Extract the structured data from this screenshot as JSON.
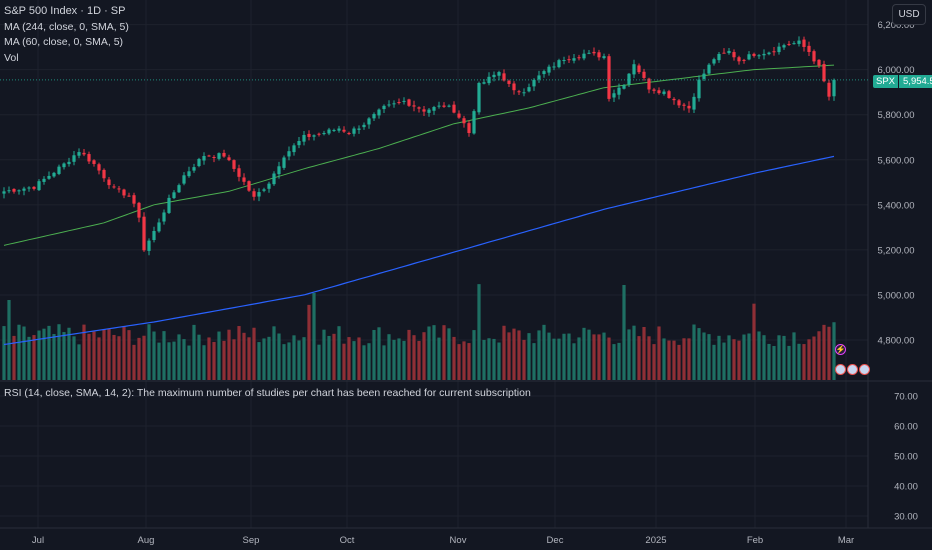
{
  "header": {
    "title": "S&P 500 Index · 1D · SP",
    "indicators": [
      "MA (244, close, 0, SMA, 5)",
      "MA (60, close, 0, SMA, 5)",
      "Vol"
    ],
    "currency_button": "USD"
  },
  "price_tag": {
    "symbol": "SPX",
    "value": "5,954.51"
  },
  "rsi_note": "RSI (14, close, SMA, 14, 2): The maximum number of studies per chart has been reached for current subscription",
  "colors": {
    "background": "#131722",
    "up": "#22ab94",
    "down": "#f23645",
    "ma60": "#4caf50",
    "ma244": "#2962ff",
    "grid": "#1e222d"
  },
  "events": {
    "bolt_icon": "lightning-icon",
    "flag_icons": [
      "us-flag-icon",
      "us-flag-icon",
      "us-flag-icon"
    ]
  },
  "chart_data": {
    "type": "candlestick",
    "title": "S&P 500 Index · 1D · SP",
    "price_axis": {
      "ticks": [
        4800,
        5000,
        5200,
        5400,
        5600,
        5800,
        6000,
        6200
      ],
      "tick_labels": [
        "4,800.00",
        "5,000.00",
        "5,200.00",
        "5,400.00",
        "5,600.00",
        "5,800.00",
        "6,000.00",
        "6,200.00"
      ]
    },
    "rsi_axis": {
      "ticks": [
        30,
        40,
        50,
        60,
        70
      ],
      "tick_labels": [
        "30.00",
        "40.00",
        "50.00",
        "60.00",
        "70.00"
      ]
    },
    "x_labels": [
      "Jul",
      "Aug",
      "Sep",
      "Oct",
      "Nov",
      "Dec",
      "2025",
      "Feb",
      "Mar"
    ],
    "last_close": 5954.51,
    "close_anchors": [
      {
        "i": 0,
        "c": 5460
      },
      {
        "i": 6,
        "c": 5480
      },
      {
        "i": 12,
        "c": 5580
      },
      {
        "i": 15,
        "c": 5640
      },
      {
        "i": 18,
        "c": 5580
      },
      {
        "i": 22,
        "c": 5470
      },
      {
        "i": 25,
        "c": 5440
      },
      {
        "i": 27,
        "c": 5350
      },
      {
        "i": 28,
        "c": 5200
      },
      {
        "i": 30,
        "c": 5280
      },
      {
        "i": 33,
        "c": 5420
      },
      {
        "i": 36,
        "c": 5530
      },
      {
        "i": 40,
        "c": 5620
      },
      {
        "i": 44,
        "c": 5620
      },
      {
        "i": 48,
        "c": 5500
      },
      {
        "i": 50,
        "c": 5430
      },
      {
        "i": 53,
        "c": 5500
      },
      {
        "i": 56,
        "c": 5620
      },
      {
        "i": 60,
        "c": 5700
      },
      {
        "i": 64,
        "c": 5720
      },
      {
        "i": 67,
        "c": 5740
      },
      {
        "i": 69,
        "c": 5720
      },
      {
        "i": 72,
        "c": 5760
      },
      {
        "i": 76,
        "c": 5830
      },
      {
        "i": 80,
        "c": 5860
      },
      {
        "i": 84,
        "c": 5820
      },
      {
        "i": 88,
        "c": 5840
      },
      {
        "i": 90,
        "c": 5820
      },
      {
        "i": 92,
        "c": 5760
      },
      {
        "i": 93,
        "c": 5720
      },
      {
        "i": 95,
        "c": 5930
      },
      {
        "i": 99,
        "c": 5990
      },
      {
        "i": 102,
        "c": 5900
      },
      {
        "i": 104,
        "c": 5910
      },
      {
        "i": 108,
        "c": 5990
      },
      {
        "i": 112,
        "c": 6050
      },
      {
        "i": 116,
        "c": 6070
      },
      {
        "i": 120,
        "c": 6060
      },
      {
        "i": 121,
        "c": 5880
      },
      {
        "i": 124,
        "c": 5940
      },
      {
        "i": 126,
        "c": 6030
      },
      {
        "i": 129,
        "c": 5920
      },
      {
        "i": 132,
        "c": 5900
      },
      {
        "i": 135,
        "c": 5850
      },
      {
        "i": 137,
        "c": 5830
      },
      {
        "i": 139,
        "c": 5950
      },
      {
        "i": 142,
        "c": 6050
      },
      {
        "i": 145,
        "c": 6080
      },
      {
        "i": 147,
        "c": 6040
      },
      {
        "i": 150,
        "c": 6070
      },
      {
        "i": 153,
        "c": 6080
      },
      {
        "i": 156,
        "c": 6110
      },
      {
        "i": 159,
        "c": 6120
      },
      {
        "i": 161,
        "c": 6080
      },
      {
        "i": 163,
        "c": 6010
      },
      {
        "i": 165,
        "c": 5880
      },
      {
        "i": 166,
        "c": 5954.51
      }
    ],
    "ma60": [
      {
        "i": 0,
        "v": 5220
      },
      {
        "i": 20,
        "v": 5320
      },
      {
        "i": 30,
        "v": 5400
      },
      {
        "i": 45,
        "v": 5460
      },
      {
        "i": 60,
        "v": 5560
      },
      {
        "i": 75,
        "v": 5650
      },
      {
        "i": 90,
        "v": 5760
      },
      {
        "i": 105,
        "v": 5830
      },
      {
        "i": 120,
        "v": 5920
      },
      {
        "i": 135,
        "v": 5960
      },
      {
        "i": 150,
        "v": 6000
      },
      {
        "i": 166,
        "v": 6020
      }
    ],
    "ma244": [
      {
        "i": 0,
        "v": 4780
      },
      {
        "i": 30,
        "v": 4880
      },
      {
        "i": 60,
        "v": 5000
      },
      {
        "i": 90,
        "v": 5190
      },
      {
        "i": 120,
        "v": 5380
      },
      {
        "i": 150,
        "v": 5540
      },
      {
        "i": 166,
        "v": 5615
      }
    ]
  }
}
